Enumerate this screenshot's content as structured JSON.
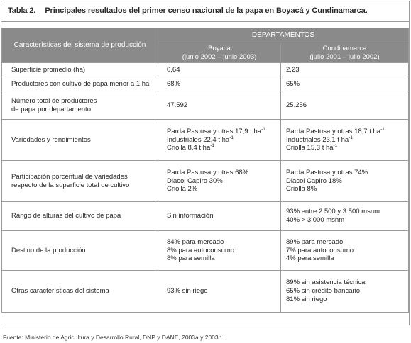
{
  "caption": {
    "number": "Tabla 2.",
    "title": "Principales resultados del primer censo nacional de la papa en Boyacá y Cundinamarca."
  },
  "header": {
    "characteristics": "Características del sistema de producción",
    "departments": "DEPARTAMENTOS",
    "boyaca": {
      "name": "Boyacá",
      "period": "(junio 2002 – junio 2003)"
    },
    "cundinamarca": {
      "name": "Cundinamarca",
      "period": "(julio 2001 – julio 2002)"
    }
  },
  "rows": [
    {
      "label": [
        "Superficie promedio (ha)"
      ],
      "boyaca": [
        "0,64"
      ],
      "cundinamarca": [
        "2,23"
      ]
    },
    {
      "label": [
        "Productores con cultivo de papa menor a 1 ha"
      ],
      "boyaca": [
        "68%"
      ],
      "cundinamarca": [
        "65%"
      ]
    },
    {
      "label": [
        "Número total de productores",
        "de papa por departamento"
      ],
      "boyaca": [
        "47.592"
      ],
      "cundinamarca": [
        "25.256"
      ]
    },
    {
      "label": [
        "Variedades y rendimientos"
      ],
      "boyaca": [
        "Parda Pastusa y otras 17,9 t ha",
        "Industriales 22,4 t ha",
        "Criolla 8,4 t ha"
      ],
      "cundinamarca": [
        "Parda Pastusa y otras 18,7 t ha",
        "Industriales 23,1 t ha",
        "Criolla 15,3 t ha"
      ],
      "unit_sup": "-1"
    },
    {
      "label": [
        "Participación porcentual de variedades",
        "respecto de la superficie total de cultivo"
      ],
      "boyaca": [
        "Parda Pastusa y otras 68%",
        "Diacol Capiro 30%",
        "Criolla 2%"
      ],
      "cundinamarca": [
        "Parda Pastusa y otras 74%",
        "Diacol Capiro 18%",
        "Criolla 8%"
      ]
    },
    {
      "label": [
        "Rango de alturas del cultivo de papa"
      ],
      "boyaca": [
        "Sin información"
      ],
      "cundinamarca": [
        "93% entre 2.500 y 3.500 msnm",
        "40% > 3.000 msnm"
      ]
    },
    {
      "label": [
        "Destino de la producción"
      ],
      "boyaca": [
        "84% para mercado",
        "8% para autoconsumo",
        "8% para semilla"
      ],
      "cundinamarca": [
        "89% para mercado",
        "7% para autoconsumo",
        "4% para semilla"
      ]
    },
    {
      "label": [
        "Otras características del sistema"
      ],
      "boyaca": [
        "93% sin riego"
      ],
      "cundinamarca": [
        "89% sin asistencia técnica",
        "65% sin crédito bancario",
        "81% sin riego"
      ]
    }
  ],
  "footer": "Fuente: Ministerio de Agricultura y Desarrollo Rural, DNP y DANE, 2003a y 2003b."
}
